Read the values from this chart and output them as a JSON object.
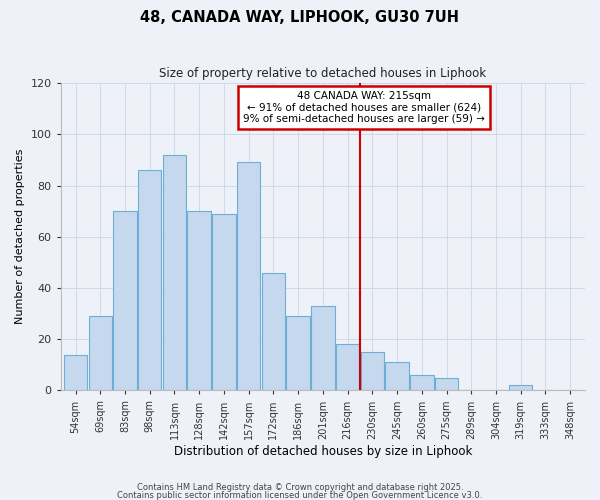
{
  "title": "48, CANADA WAY, LIPHOOK, GU30 7UH",
  "subtitle": "Size of property relative to detached houses in Liphook",
  "xlabel": "Distribution of detached houses by size in Liphook",
  "ylabel": "Number of detached properties",
  "bar_labels": [
    "54sqm",
    "69sqm",
    "83sqm",
    "98sqm",
    "113sqm",
    "128sqm",
    "142sqm",
    "157sqm",
    "172sqm",
    "186sqm",
    "201sqm",
    "216sqm",
    "230sqm",
    "245sqm",
    "260sqm",
    "275sqm",
    "289sqm",
    "304sqm",
    "319sqm",
    "333sqm",
    "348sqm"
  ],
  "bar_values": [
    14,
    29,
    70,
    86,
    92,
    70,
    69,
    89,
    46,
    29,
    33,
    18,
    15,
    11,
    6,
    5,
    0,
    0,
    2,
    0,
    0
  ],
  "bar_color": "#c5d8ee",
  "bar_edge_color": "#6baed6",
  "vline_x": 11.5,
  "vline_color": "#cc0000",
  "annotation_text": "48 CANADA WAY: 215sqm\n← 91% of detached houses are smaller (624)\n9% of semi-detached houses are larger (59) →",
  "annotation_box_color": "#cc0000",
  "ylim": [
    0,
    120
  ],
  "yticks": [
    0,
    20,
    40,
    60,
    80,
    100,
    120
  ],
  "grid_color": "#d0d8ec",
  "bg_color": "#eef2f8",
  "footer1": "Contains HM Land Registry data © Crown copyright and database right 2025.",
  "footer2": "Contains public sector information licensed under the Open Government Licence v3.0."
}
